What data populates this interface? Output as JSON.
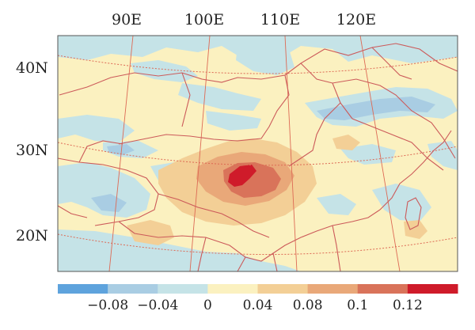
{
  "map": {
    "longitude_labels": [
      "90E",
      "100E",
      "110E",
      "120E"
    ],
    "latitude_labels": [
      "40N",
      "30N",
      "20N"
    ]
  },
  "colorbar": {
    "colors": [
      "#5ea3dd",
      "#a9cde3",
      "#c5e3e7",
      "#fbf1c0",
      "#f3cf96",
      "#e9a879",
      "#d9735a",
      "#cf1b2a"
    ],
    "labels": [
      "−0.08",
      "−0.04",
      "0",
      "0.04",
      "0.08",
      "0.1",
      "0.12"
    ]
  }
}
